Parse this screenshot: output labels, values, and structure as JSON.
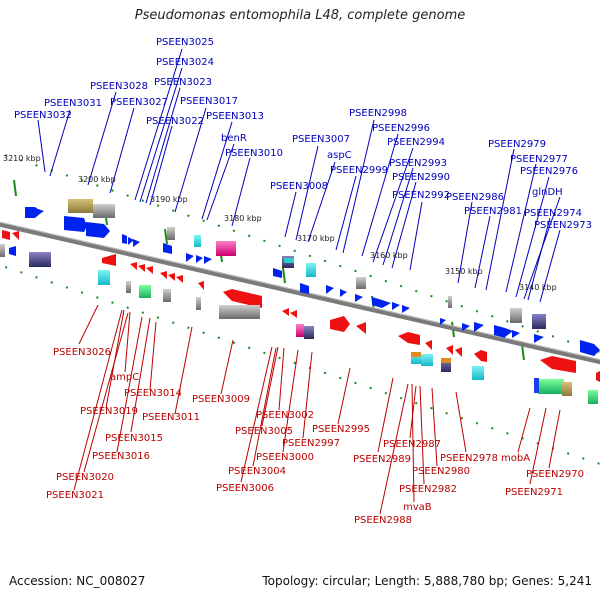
{
  "header": {
    "title": "Pseudomonas entomophila L48, complete genome"
  },
  "footer": {
    "accession_label": "Accession: NC_008027",
    "topology_label": "Topology: circular; Length: 5,888,780 bp; Genes: 5,241"
  },
  "scale_labels": [
    "3210 kbp",
    "3200 kbp",
    "3190 kbp",
    "3180 kbp",
    "3170 kbp",
    "3160 kbp",
    "3150 kbp",
    "3140 kbp"
  ],
  "colors": {
    "forward_label": "#0000bb",
    "reverse_label": "#bb0000",
    "backbone": "#808080"
  },
  "top_labels": [
    "PSEEN3032",
    "PSEEN3031",
    "PSEEN3028",
    "PSEEN3027",
    "PSEEN3025",
    "PSEEN3024",
    "PSEEN3023",
    "PSEEN3022",
    "PSEEN3017",
    "PSEEN3013",
    "benR",
    "PSEEN3010",
    "PSEEN3008",
    "PSEEN3007",
    "aspC",
    "PSEEN2999",
    "PSEEN2998",
    "PSEEN2996",
    "PSEEN2994",
    "PSEEN2993",
    "PSEEN2990",
    "PSEEN2992",
    "PSEEN2986",
    "PSEEN2981",
    "PSEEN2979",
    "PSEEN2977",
    "PSEEN2976",
    "glnDH",
    "PSEEN2974",
    "PSEEN2973"
  ],
  "bottom_labels": [
    "PSEEN3026",
    "ampC",
    "PSEEN3014",
    "PSEEN3019",
    "PSEEN3011",
    "PSEEN3015",
    "PSEEN3016",
    "PSEEN3020",
    "PSEEN3021",
    "PSEEN3009",
    "PSEEN3002",
    "PSEEN3005",
    "PSEEN2997",
    "PSEEN3000",
    "PSEEN3004",
    "PSEEN3006",
    "PSEEN2995",
    "PSEEN2987",
    "PSEEN2989",
    "PSEEN2980",
    "PSEEN2978",
    "PSEEN2982",
    "mvaB",
    "PSEEN2988",
    "mobA",
    "PSEEN2970",
    "PSEEN2971"
  ]
}
